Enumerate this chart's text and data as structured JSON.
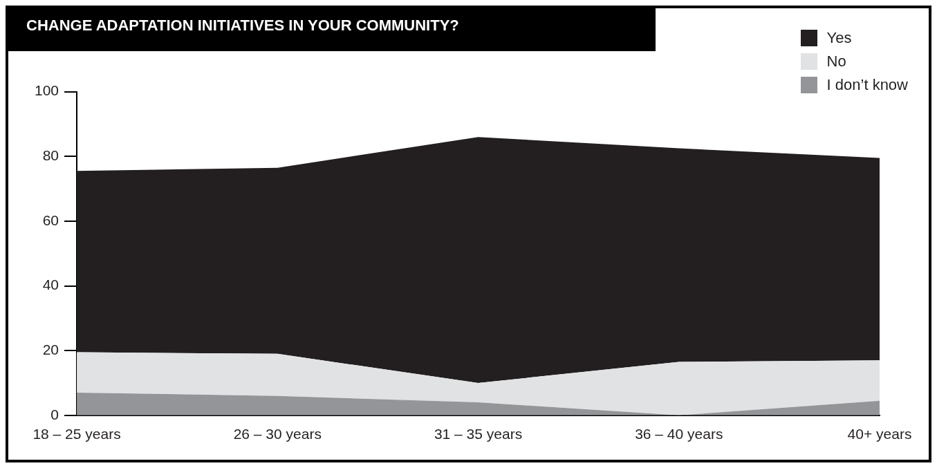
{
  "chart_data": {
    "type": "area",
    "title": "CHANGE ADAPTATION INITIATIVES IN YOUR COMMUNITY?",
    "stacked": true,
    "categories": [
      "18 – 25 years",
      "26 – 30 years",
      "31 – 35 years",
      "36 – 40 years",
      "40+ years"
    ],
    "series": [
      {
        "name": "I don’t know",
        "color": "#939598",
        "values": [
          7,
          6,
          4,
          0,
          4.5
        ]
      },
      {
        "name": "No",
        "color": "#e1e2e3",
        "values": [
          12.5,
          13,
          6,
          16.5,
          12.5
        ]
      },
      {
        "name": "Yes",
        "color": "#231f20",
        "values": [
          56,
          57.5,
          76,
          66,
          62.5
        ]
      }
    ],
    "ylim": [
      0,
      100
    ],
    "yticks": [
      0,
      20,
      40,
      60,
      80,
      100
    ],
    "grid": false,
    "legend": "top right",
    "marker": "none"
  }
}
